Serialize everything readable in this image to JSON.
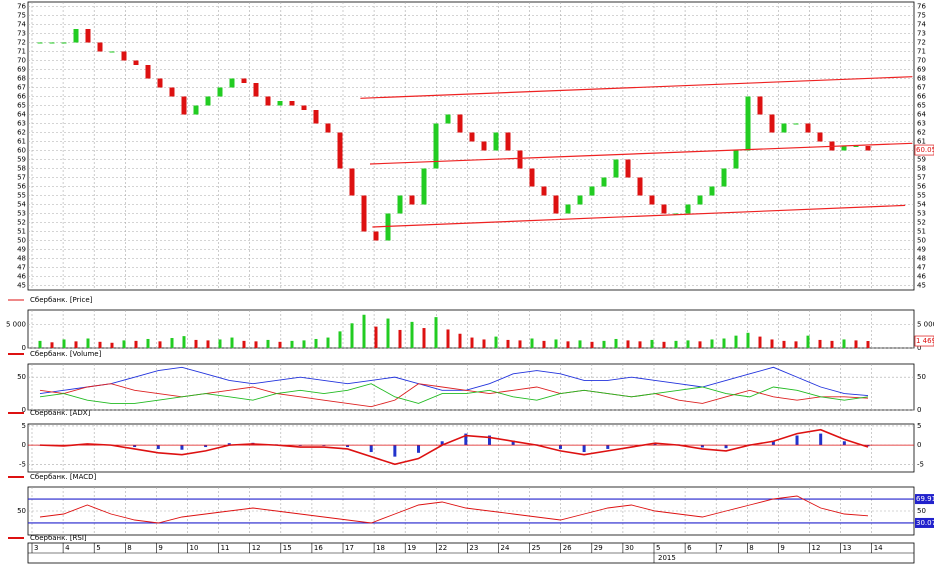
{
  "chart_data": [
    {
      "type": "candlestick",
      "legend": "Сбербанк. [Price]",
      "up_color": "#22cc22",
      "down_color": "#dd1111",
      "ylim": [
        44.5,
        76.5
      ],
      "yticks": [
        45,
        46,
        47,
        48,
        49,
        50,
        51,
        52,
        53,
        54,
        55,
        56,
        57,
        58,
        59,
        60,
        61,
        62,
        63,
        64,
        65,
        66,
        67,
        68,
        69,
        70,
        71,
        72,
        73,
        74,
        75,
        76
      ],
      "values": [
        72,
        72,
        72,
        73.5,
        72,
        71,
        71,
        70,
        69.5,
        68,
        67,
        66,
        64,
        65,
        66,
        67,
        68,
        67.5,
        66,
        65,
        65.5,
        65,
        64.5,
        63,
        62,
        58,
        55,
        51,
        50,
        53,
        55,
        54,
        58,
        63,
        64,
        62,
        61,
        60,
        62,
        60,
        58,
        56,
        55,
        53,
        54,
        55,
        56,
        57,
        59,
        57,
        55,
        54,
        53,
        53,
        54,
        55,
        56,
        58,
        60,
        66,
        64,
        62,
        63,
        63,
        62,
        61,
        60,
        60.5,
        60.5,
        60
      ],
      "last_value": 60.05,
      "trend_color": "#ee2222",
      "trend_lines": [
        [
          [
            26.7,
            65.8
          ],
          [
            72.7,
            68.2
          ]
        ],
        [
          [
            27.5,
            58.5
          ],
          [
            72.7,
            60.8
          ]
        ],
        [
          [
            27.7,
            51.5
          ],
          [
            72.1,
            53.9
          ]
        ]
      ]
    },
    {
      "type": "bar",
      "legend": "Сбербанк. [Volume]",
      "up_color": "#22cc22",
      "down_color": "#dd1111",
      "ylim": [
        0,
        8000
      ],
      "yticks": [
        0,
        {
          "value": 5000,
          "label": "5 000"
        }
      ],
      "last_value": {
        "value": 1469,
        "label": "1 469"
      },
      "values": [
        1500,
        1200,
        1800,
        1400,
        2000,
        1300,
        1100,
        1600,
        1500,
        1900,
        1400,
        2100,
        2500,
        1700,
        1600,
        1800,
        2200,
        1500,
        1400,
        1700,
        1300,
        1500,
        1600,
        1900,
        2200,
        3500,
        5200,
        7000,
        4500,
        6200,
        3800,
        5500,
        4200,
        6500,
        3900,
        3000,
        2200,
        1800,
        2400,
        1700,
        1600,
        2000,
        1500,
        1800,
        1400,
        1600,
        1300,
        1500,
        1900,
        1600,
        1400,
        1700,
        1300,
        1500,
        1600,
        1400,
        1800,
        2000,
        2600,
        3200,
        2400,
        1800,
        1500,
        1400,
        2600,
        1700,
        1500,
        1800,
        1600,
        1469
      ]
    },
    {
      "type": "line",
      "legend": "Сбербанк. [ADX]",
      "ylim": [
        0,
        70
      ],
      "yticks": [
        0,
        50
      ],
      "series": [
        {
          "name": "ADX",
          "color": "#2233dd",
          "values": [
            25,
            30,
            35,
            40,
            50,
            60,
            65,
            55,
            45,
            40,
            45,
            50,
            45,
            40,
            45,
            50,
            40,
            30,
            30,
            40,
            55,
            60,
            55,
            45,
            45,
            50,
            45,
            40,
            35,
            45,
            55,
            65,
            50,
            35,
            25,
            22
          ]
        },
        {
          "name": "+DI",
          "color": "#dd2222",
          "values": [
            30,
            25,
            35,
            40,
            30,
            25,
            20,
            25,
            30,
            35,
            25,
            20,
            15,
            10,
            5,
            15,
            40,
            35,
            30,
            25,
            30,
            35,
            25,
            30,
            25,
            20,
            25,
            15,
            10,
            20,
            30,
            20,
            15,
            20,
            20,
            18
          ]
        },
        {
          "name": "-DI",
          "color": "#22bb22",
          "values": [
            20,
            25,
            15,
            10,
            10,
            15,
            20,
            25,
            20,
            15,
            25,
            30,
            25,
            30,
            40,
            20,
            10,
            25,
            25,
            30,
            20,
            15,
            25,
            30,
            25,
            20,
            25,
            30,
            35,
            25,
            20,
            35,
            30,
            20,
            15,
            20
          ]
        }
      ]
    },
    {
      "type": "macd",
      "legend": "Сбербанк. [MACD]",
      "ylim": [
        -7,
        5.5
      ],
      "yticks": [
        -5,
        0,
        5
      ],
      "series": [
        {
          "name": "Histogram",
          "kind": "histogram",
          "color": "#2233cc",
          "values": [
            0,
            -0.2,
            0.3,
            0.1,
            -0.5,
            -1,
            -1.2,
            -0.5,
            0.5,
            0.6,
            0.2,
            -0.2,
            -0.2,
            -0.5,
            -1.8,
            -3,
            -2,
            1,
            3,
            2.5,
            1.2,
            0.2,
            -1,
            -1.8,
            -1,
            0,
            0.6,
            0.2,
            -0.6,
            -0.8,
            0.2,
            1,
            2.5,
            3,
            1,
            -0.3
          ]
        },
        {
          "name": "MACD",
          "kind": "line",
          "color": "#dd1111",
          "values": [
            0,
            -0.2,
            0.3,
            0,
            -1,
            -2,
            -2.5,
            -1.5,
            0,
            0.3,
            0,
            -0.5,
            -0.5,
            -1,
            -3,
            -5,
            -3.5,
            0,
            2.5,
            2,
            1,
            0,
            -1.5,
            -2.5,
            -1.5,
            -0.5,
            0.5,
            0,
            -1,
            -1.5,
            0,
            1,
            3,
            4,
            1.5,
            -0.5
          ]
        }
      ]
    },
    {
      "type": "line",
      "legend": "Сбербанк. [RSI]",
      "ylim": [
        10,
        90
      ],
      "yticks": [
        50
      ],
      "levels": [
        69.91,
        30.07
      ],
      "level_color": "#2222cc",
      "series": [
        {
          "name": "RSI",
          "color": "#dd1111",
          "values": [
            40,
            45,
            60,
            45,
            35,
            30,
            40,
            45,
            50,
            55,
            50,
            45,
            40,
            35,
            30,
            45,
            60,
            65,
            55,
            50,
            45,
            40,
            35,
            45,
            55,
            60,
            50,
            45,
            40,
            50,
            60,
            70,
            75,
            55,
            45,
            42
          ]
        }
      ]
    }
  ],
  "x_axis": {
    "labels": [
      "3",
      "4",
      "5",
      "8",
      "9",
      "10",
      "11",
      "12",
      "15",
      "16",
      "17",
      "18",
      "19",
      "22",
      "23",
      "24",
      "25",
      "26",
      "29",
      "30",
      "5",
      "6",
      "7",
      "8",
      "9",
      "12",
      "13",
      "14"
    ],
    "year": "2015"
  }
}
